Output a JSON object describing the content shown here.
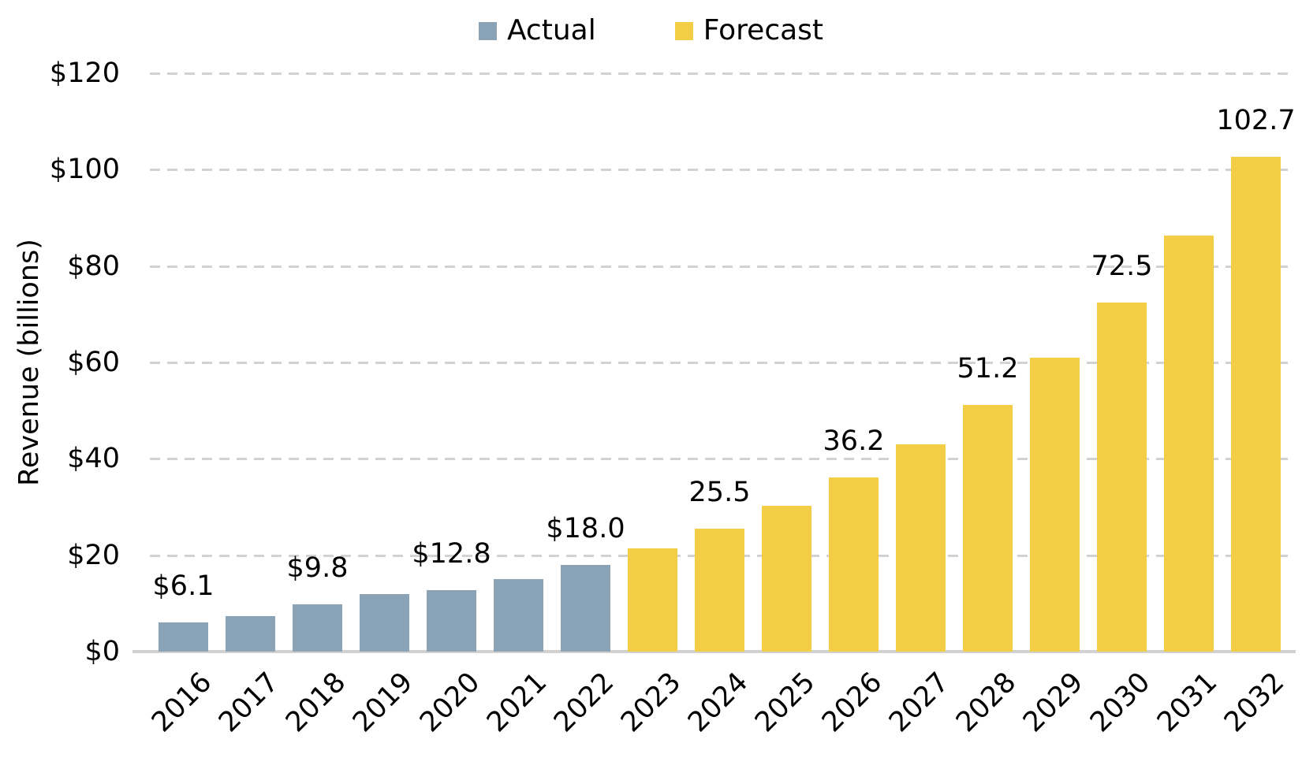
{
  "legend": {
    "items": [
      {
        "label": "Actual",
        "color": "#8BA3B7"
      },
      {
        "label": "Forecast",
        "color": "#F3CD45"
      }
    ],
    "position": "top-center"
  },
  "chart_data": {
    "type": "bar",
    "title": "",
    "xlabel": "",
    "ylabel": "Revenue (billions)",
    "categories": [
      "2016",
      "2017",
      "2018",
      "2019",
      "2020",
      "2021",
      "2022",
      "2023",
      "2024",
      "2025",
      "2026",
      "2027",
      "2028",
      "2029",
      "2030",
      "2031",
      "2032"
    ],
    "series": [
      {
        "name": "Actual",
        "color": "#8BA3B7",
        "values": [
          6.1,
          7.3,
          9.8,
          11.9,
          12.8,
          15.1,
          18.0,
          null,
          null,
          null,
          null,
          null,
          null,
          null,
          null,
          null,
          null
        ]
      },
      {
        "name": "Forecast",
        "color": "#F3CD45",
        "values": [
          null,
          null,
          null,
          null,
          null,
          null,
          null,
          21.4,
          25.5,
          30.3,
          36.2,
          43.0,
          51.2,
          60.9,
          72.5,
          86.3,
          102.7
        ]
      }
    ],
    "bar_labels": [
      "$6.1",
      null,
      "$9.8",
      null,
      "$12.8",
      null,
      "$18.0",
      null,
      "25.5",
      null,
      "36.2",
      null,
      "51.2",
      null,
      "72.5",
      null,
      "102.7"
    ],
    "ylim": [
      0,
      120
    ],
    "y_tick_step": 20,
    "y_ticks": [
      {
        "value": 0,
        "label": "$0"
      },
      {
        "value": 20,
        "label": "$20"
      },
      {
        "value": 40,
        "label": "$40"
      },
      {
        "value": 60,
        "label": "$60"
      },
      {
        "value": 80,
        "label": "$80"
      },
      {
        "value": 100,
        "label": "$100"
      },
      {
        "value": 120,
        "label": "$120"
      }
    ],
    "grid": {
      "horizontal": true,
      "style": "dashed",
      "color": "#D2D2D2"
    },
    "axis_line_color": "#D1D1D1",
    "legend_position": "top-center"
  },
  "colors": {
    "background": "#FFFFFF",
    "text": "#000000",
    "actual_bar": "#8BA3B7",
    "forecast_bar": "#F3CD45",
    "gridline": "#D2D2D2",
    "axis_line": "#D1D1D1"
  }
}
